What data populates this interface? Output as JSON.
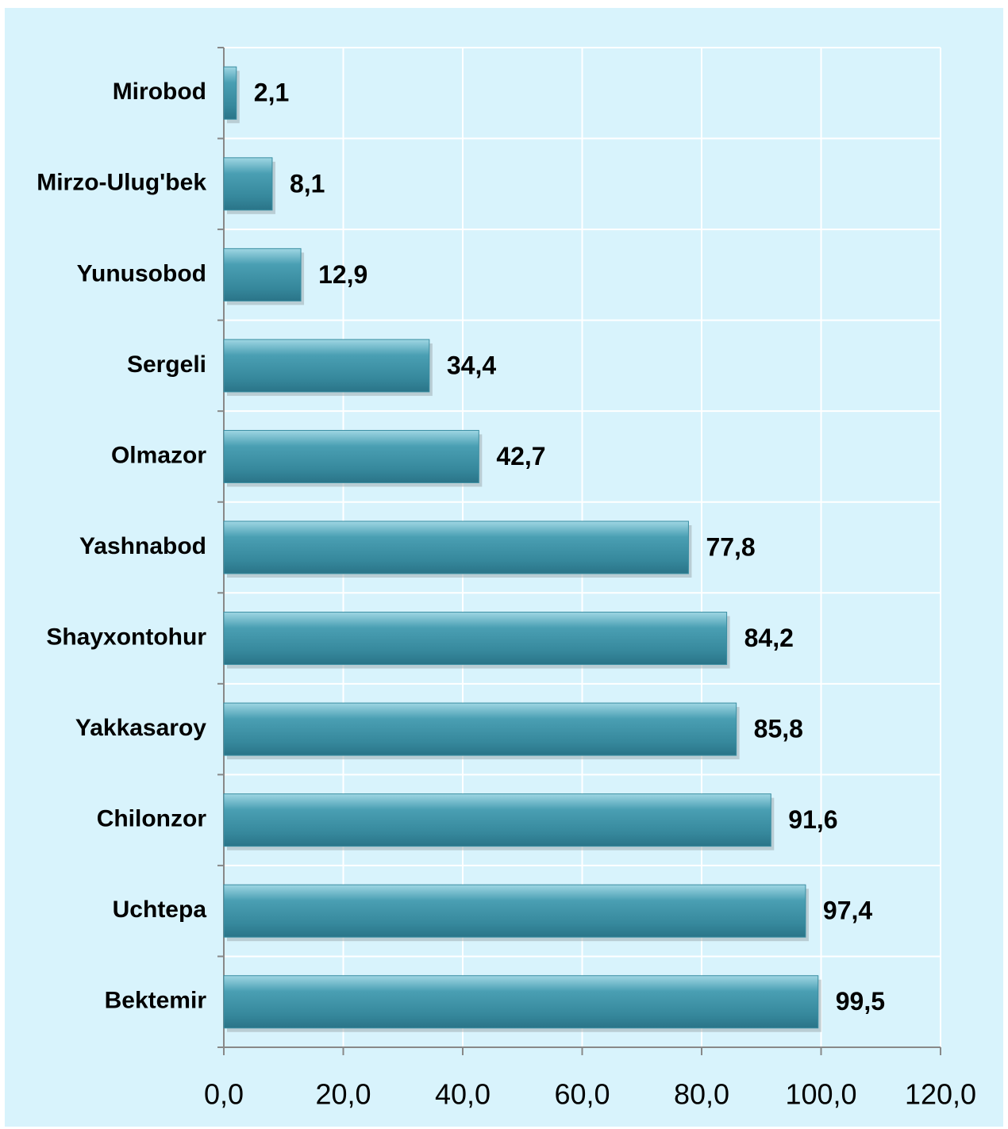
{
  "chart_data": {
    "type": "bar",
    "categories": [
      "Mirobod",
      "Mirzo-Ulug'bek",
      "Yunusobod",
      "Sergeli",
      "Olmazor",
      "Yashnabod",
      "Shayxontohur",
      "Yakkasaroy",
      "Chilonzor",
      "Uchtepa",
      "Bektemir"
    ],
    "values": [
      2.1,
      8.1,
      12.9,
      34.4,
      42.7,
      77.8,
      84.2,
      85.8,
      91.6,
      97.4,
      99.5
    ],
    "value_labels": [
      "2,1",
      "8,1",
      "12,9",
      "34,4",
      "42,7",
      "77,8",
      "84,2",
      "85,8",
      "91,6",
      "97,4",
      "99,5"
    ],
    "color": "#3a8ea2",
    "xlim": [
      0,
      120
    ],
    "xticks": [
      {
        "value": 0,
        "label": "0,0"
      },
      {
        "value": 20,
        "label": "20,0"
      },
      {
        "value": 40,
        "label": "40,0"
      },
      {
        "value": 60,
        "label": "60,0"
      },
      {
        "value": 80,
        "label": "80,0"
      },
      {
        "value": 100,
        "label": "100,0"
      },
      {
        "value": 120,
        "label": "120,0"
      }
    ],
    "grid": true
  }
}
